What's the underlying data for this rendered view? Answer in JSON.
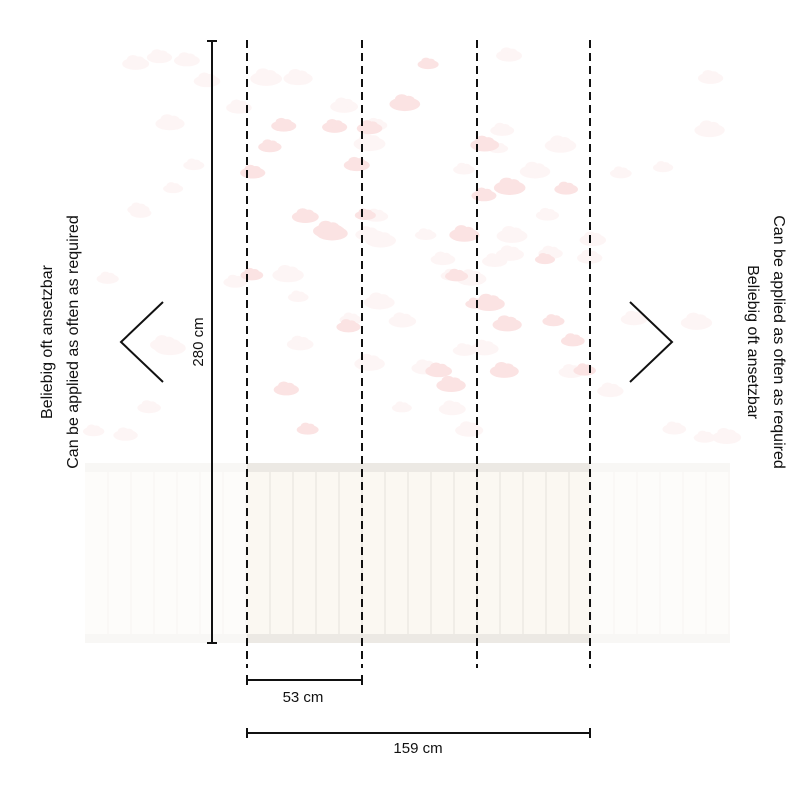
{
  "dimensions": {
    "height_label": "280 cm",
    "panel_width_label": "53 cm",
    "total_width_label": "159 cm"
  },
  "left_note": {
    "line1": "Beliebig oft ansetzbar",
    "line2": "Can be applied as often as required"
  },
  "right_note": {
    "line1": "Beliebig oft ansetzbar",
    "line2": "Can be applied as often as required"
  },
  "colors": {
    "cloud": "#fbe3e3",
    "fence": "#fbf8f2",
    "fence_rail": "#ece9e4",
    "line": "#111111"
  },
  "panel_count": 3
}
